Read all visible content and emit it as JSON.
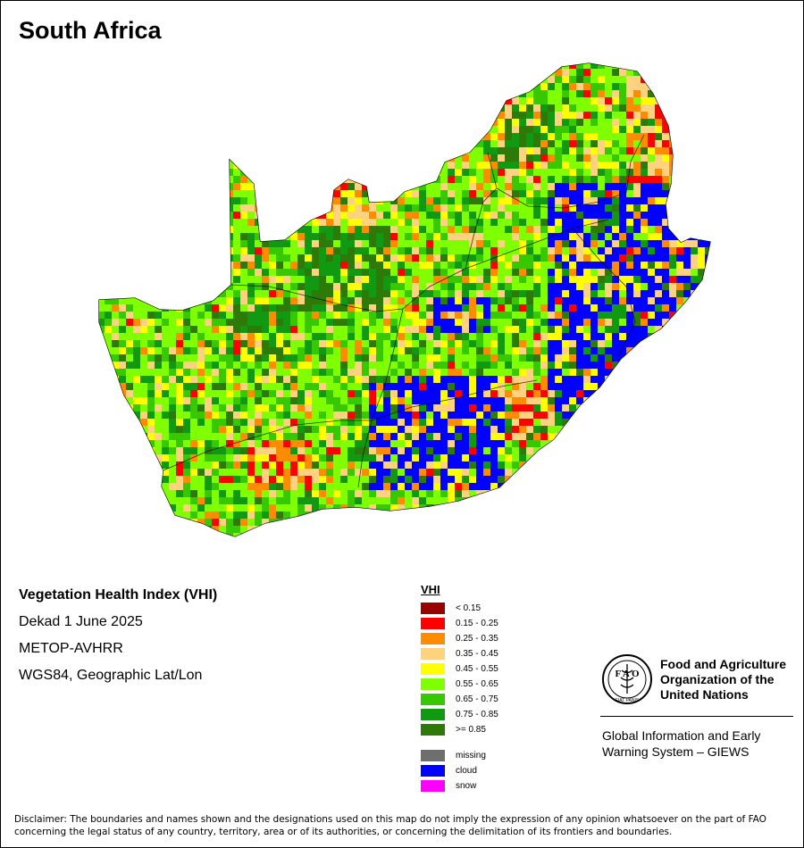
{
  "map": {
    "title": "South Africa",
    "product": "Vegetation Health Index (VHI)",
    "period": "Dekad 1 June 2025",
    "sensor": "METOP-AVHRR",
    "projection": "WGS84, Geographic Lat/Lon"
  },
  "legend": {
    "title": "VHI",
    "classes": [
      {
        "label": "< 0.15",
        "color": "#990000"
      },
      {
        "label": "0.15 - 0.25",
        "color": "#ff0000"
      },
      {
        "label": "0.25 - 0.35",
        "color": "#ff8c00"
      },
      {
        "label": "0.35 - 0.45",
        "color": "#ffd27f"
      },
      {
        "label": "0.45 - 0.55",
        "color": "#ffff00"
      },
      {
        "label": "0.55 - 0.65",
        "color": "#80ff00"
      },
      {
        "label": "0.65 - 0.75",
        "color": "#38c800"
      },
      {
        "label": "0.75 - 0.85",
        "color": "#119a11"
      },
      {
        "label": ">= 0.85",
        "color": "#2e7a08"
      }
    ],
    "special": [
      {
        "label": "missing",
        "color": "#6e6e6e"
      },
      {
        "label": "cloud",
        "color": "#0000ff"
      },
      {
        "label": "snow",
        "color": "#ff00ff"
      }
    ]
  },
  "branding": {
    "org_line1": "Food and Agriculture",
    "org_line2": "Organization of the",
    "org_line3": "United Nations",
    "system_line1": "Global Information and Early",
    "system_line2": "Warning System – GIEWS",
    "logo_icon": "fao-logo-icon"
  },
  "disclaimer": "Disclaimer: The boundaries and names shown and the designations used on this map do not imply the expression of any opinion whatsoever on the part of FAO concerning the legal status of any country, territory, area or of its authorities, or concerning the delimitation of its frontiers and boundaries."
}
